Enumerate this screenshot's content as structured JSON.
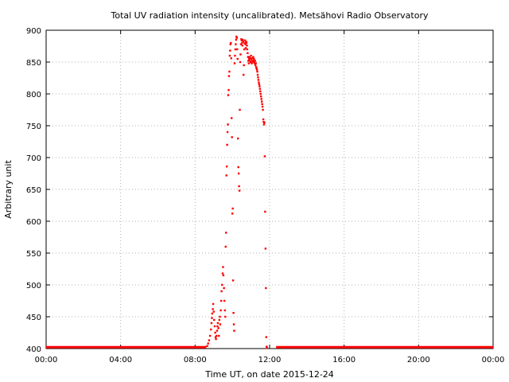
{
  "chart_data": {
    "type": "scatter",
    "title": "Total UV radiation intensity (uncalibrated). Metsähovi Radio Observatory",
    "xlabel": "Time UT, on date 2015-12-24",
    "ylabel": "Arbitrary unit",
    "x_unit": "hours UT",
    "xlim": [
      0,
      24
    ],
    "ylim": [
      400,
      900
    ],
    "x_ticks": [
      {
        "value": 0,
        "label": "00:00"
      },
      {
        "value": 4,
        "label": "04:00"
      },
      {
        "value": 8,
        "label": "08:00"
      },
      {
        "value": 12,
        "label": "12:00"
      },
      {
        "value": 16,
        "label": "16:00"
      },
      {
        "value": 20,
        "label": "20:00"
      },
      {
        "value": 24,
        "label": "00:00"
      }
    ],
    "y_ticks": [
      {
        "value": 400,
        "label": "400"
      },
      {
        "value": 450,
        "label": "450"
      },
      {
        "value": 500,
        "label": "500"
      },
      {
        "value": 550,
        "label": "550"
      },
      {
        "value": 600,
        "label": "600"
      },
      {
        "value": 650,
        "label": "650"
      },
      {
        "value": 700,
        "label": "700"
      },
      {
        "value": 750,
        "label": "750"
      },
      {
        "value": 800,
        "label": "800"
      },
      {
        "value": 850,
        "label": "850"
      },
      {
        "value": 900,
        "label": "900"
      }
    ],
    "grid": true,
    "series_color": "#ff0000",
    "baseline_segments": [
      {
        "x_start": 0.0,
        "x_end": 8.6,
        "y": 401
      },
      {
        "x_start": 12.35,
        "x_end": 24.0,
        "y": 401
      }
    ],
    "series": [
      {
        "points": [
          [
            8.65,
            404
          ],
          [
            8.7,
            408
          ],
          [
            8.75,
            413
          ],
          [
            8.8,
            420
          ],
          [
            8.85,
            430
          ],
          [
            8.88,
            440
          ],
          [
            8.9,
            448
          ],
          [
            8.92,
            455
          ],
          [
            8.95,
            462
          ],
          [
            8.97,
            470
          ],
          [
            9.0,
            458
          ],
          [
            9.02,
            445
          ],
          [
            9.05,
            435
          ],
          [
            9.08,
            425
          ],
          [
            9.1,
            418
          ],
          [
            9.12,
            415
          ],
          [
            9.15,
            420
          ],
          [
            9.18,
            428
          ],
          [
            9.2,
            435
          ],
          [
            9.22,
            440
          ],
          [
            9.25,
            432
          ],
          [
            9.28,
            420
          ],
          [
            9.3,
            445
          ],
          [
            9.33,
            450
          ],
          [
            9.35,
            438
          ],
          [
            9.38,
            460
          ],
          [
            9.4,
            475
          ],
          [
            9.42,
            490
          ],
          [
            9.45,
            500
          ],
          [
            9.48,
            518
          ],
          [
            9.5,
            528
          ],
          [
            9.52,
            515
          ],
          [
            9.55,
            495
          ],
          [
            9.57,
            475
          ],
          [
            9.6,
            460
          ],
          [
            9.62,
            450
          ],
          [
            9.64,
            560
          ],
          [
            9.66,
            582
          ],
          [
            9.68,
            672
          ],
          [
            9.7,
            686
          ],
          [
            9.72,
            720
          ],
          [
            9.74,
            740
          ],
          [
            9.76,
            752
          ],
          [
            9.78,
            798
          ],
          [
            9.8,
            806
          ],
          [
            9.82,
            828
          ],
          [
            9.84,
            835
          ],
          [
            9.86,
            860
          ],
          [
            9.88,
            868
          ],
          [
            9.9,
            878
          ],
          [
            9.92,
            880
          ],
          [
            9.94,
            856
          ],
          [
            9.96,
            762
          ],
          [
            9.98,
            732
          ],
          [
            10.0,
            612
          ],
          [
            10.02,
            620
          ],
          [
            10.04,
            507
          ],
          [
            10.06,
            456
          ],
          [
            10.08,
            438
          ],
          [
            10.1,
            428
          ],
          [
            10.12,
            848
          ],
          [
            10.14,
            860
          ],
          [
            10.16,
            870
          ],
          [
            10.18,
            878
          ],
          [
            10.2,
            885
          ],
          [
            10.22,
            890
          ],
          [
            10.24,
            888
          ],
          [
            10.26,
            870
          ],
          [
            10.28,
            855
          ],
          [
            10.3,
            730
          ],
          [
            10.32,
            685
          ],
          [
            10.34,
            675
          ],
          [
            10.36,
            655
          ],
          [
            10.38,
            648
          ],
          [
            10.4,
            775
          ],
          [
            10.42,
            850
          ],
          [
            10.44,
            862
          ],
          [
            10.46,
            878
          ],
          [
            10.48,
            886
          ],
          [
            10.5,
            884
          ],
          [
            10.52,
            880
          ],
          [
            10.54,
            876
          ],
          [
            10.56,
            885
          ],
          [
            10.58,
            882
          ],
          [
            10.6,
            830
          ],
          [
            10.62,
            845
          ],
          [
            10.64,
            870
          ],
          [
            10.66,
            880
          ],
          [
            10.68,
            884
          ],
          [
            10.7,
            878
          ],
          [
            10.72,
            872
          ],
          [
            10.74,
            882
          ],
          [
            10.76,
            880
          ],
          [
            10.78,
            876
          ],
          [
            10.8,
            870
          ],
          [
            10.82,
            864
          ],
          [
            10.84,
            858
          ],
          [
            10.86,
            852
          ],
          [
            10.88,
            848
          ],
          [
            10.9,
            855
          ],
          [
            10.92,
            858
          ],
          [
            10.94,
            852
          ],
          [
            10.96,
            856
          ],
          [
            10.98,
            850
          ],
          [
            11.0,
            860
          ],
          [
            11.02,
            855
          ],
          [
            11.04,
            848
          ],
          [
            11.06,
            852
          ],
          [
            11.08,
            856
          ],
          [
            11.1,
            850
          ],
          [
            11.12,
            858
          ],
          [
            11.14,
            852
          ],
          [
            11.16,
            855
          ],
          [
            11.18,
            850
          ],
          [
            11.2,
            848
          ],
          [
            11.22,
            852
          ],
          [
            11.24,
            845
          ],
          [
            11.26,
            848
          ],
          [
            11.28,
            842
          ],
          [
            11.3,
            840
          ],
          [
            11.32,
            838
          ],
          [
            11.34,
            835
          ],
          [
            11.36,
            830
          ],
          [
            11.38,
            826
          ],
          [
            11.4,
            822
          ],
          [
            11.42,
            818
          ],
          [
            11.44,
            815
          ],
          [
            11.46,
            812
          ],
          [
            11.48,
            808
          ],
          [
            11.5,
            804
          ],
          [
            11.52,
            800
          ],
          [
            11.54,
            796
          ],
          [
            11.56,
            792
          ],
          [
            11.58,
            788
          ],
          [
            11.6,
            784
          ],
          [
            11.62,
            780
          ],
          [
            11.64,
            775
          ],
          [
            11.66,
            760
          ],
          [
            11.68,
            756
          ],
          [
            11.7,
            752
          ],
          [
            11.72,
            755
          ],
          [
            11.74,
            702
          ],
          [
            11.76,
            615
          ],
          [
            11.78,
            557
          ],
          [
            11.8,
            495
          ],
          [
            11.82,
            418
          ],
          [
            11.84,
            403
          ],
          [
            11.86,
            401
          ]
        ]
      }
    ]
  }
}
